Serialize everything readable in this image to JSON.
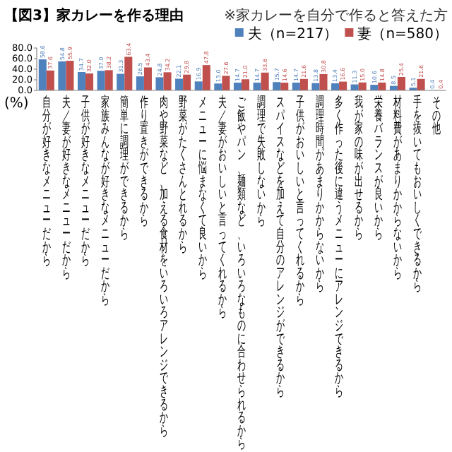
{
  "chart_data": {
    "type": "bar",
    "title": "【図3】家カレーを作る理由",
    "subtitle": "※家カレーを自分で作ると答えた方",
    "ylabel": "(%)",
    "categories": [
      "自分が好きなメニューだから",
      "夫／妻が好きなメニューだから",
      "子供が好きなメニューだから",
      "家族みんなが好きなメニューだから",
      "簡単に調理ができるから",
      "作り置きができるから",
      "肉や野菜など、加える食材をいろいろアレンジできるから",
      "野菜がたくさんとれるから",
      "メニューに悩まなくて良いから",
      "夫／妻がおいしいと言ってくれるから",
      "ご飯やパン、麺類など、いろいろなものに合わせられるから",
      "調理で失敗しないから",
      "スパイスなどを加えて自分のアレンジができるから",
      "子供がおいしいと言ってくれるから",
      "調理時間があまりかからないから",
      "多く作った後に違うメニューにアレンジできるから",
      "我が家の味が出せるから",
      "栄養バランスが良いから",
      "材料費があまりかからないから",
      "手を抜いてもおいしくできるから",
      "その他"
    ],
    "series": [
      {
        "name": "夫（n=217）",
        "color": "#4f81bd",
        "values": [
          58.6,
          54.8,
          34.7,
          37.0,
          31.3,
          26.5,
          24.8,
          22.1,
          16.9,
          13.0,
          14.7,
          14.7,
          15.7,
          14.7,
          13.8,
          13.4,
          11.3,
          10.6,
          8.5,
          5.1,
          0.4
        ],
        "value_labels": [
          "58.6",
          "54.8",
          "34.7",
          "37.0",
          "31.3",
          "26.5",
          "24.8",
          "22.1",
          "16.9",
          "13.0",
          "14.7",
          "14.7",
          "15.7",
          "14.7",
          "13.8",
          "13.4",
          "11.3",
          "10.6",
          "8.5",
          "5.1",
          "0.4"
        ]
      },
      {
        "name": "妻（n=580）",
        "color": "#c0504d",
        "values": [
          37.6,
          55.9,
          32.0,
          38.2,
          63.4,
          43.4,
          34.2,
          29.8,
          47.8,
          27.6,
          21.0,
          33.6,
          14.6,
          21.6,
          30.8,
          16.6,
          15.0,
          14.8,
          25.4,
          21.6,
          0.4
        ],
        "value_labels": [
          "37.6",
          "55.9",
          "32.0",
          "38.2",
          "63.4",
          "43.4",
          "34.2",
          "29.8",
          "47.8",
          "27.6",
          "21.0",
          "33.6",
          "14.6",
          "21.6",
          "30.8",
          "16.6",
          "15.0",
          "14.8",
          "25.4",
          "21.6",
          "0.4"
        ]
      }
    ],
    "ylim": [
      0,
      80
    ],
    "yticks": [
      {
        "value": 0,
        "label": "0.0"
      },
      {
        "value": 20,
        "label": "20.0"
      },
      {
        "value": 40,
        "label": "40.0"
      },
      {
        "value": 60,
        "label": "60.0"
      },
      {
        "value": 80,
        "label": "80.0"
      }
    ],
    "legend": "top right"
  }
}
